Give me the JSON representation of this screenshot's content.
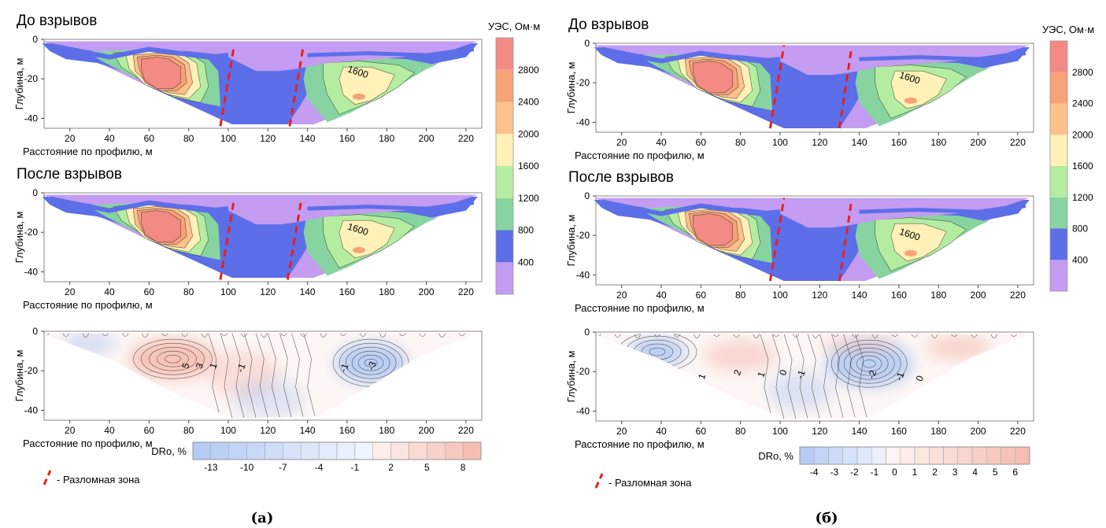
{
  "captions": [
    "(а)",
    "(б)"
  ],
  "fault_legend_label": "- Разломная зона",
  "colors": {
    "fault": "#e8201f",
    "resistivity": [
      "#c49cf2",
      "#5c6ee8",
      "#87d4a0",
      "#b5eda0",
      "#fff1b8",
      "#ffc18c",
      "#f7a277",
      "#f38a84"
    ],
    "drop_negative": "#a9c3f2",
    "drop_positive": "#f4b2a4"
  },
  "resistivity_scale": {
    "title": "УЭС, Ом·м",
    "ticks": [
      "400",
      "800",
      "1200",
      "1600",
      "2000",
      "2400",
      "2800"
    ]
  },
  "chart_data": [
    {
      "panel": "а",
      "section": "before",
      "type": "heatmap",
      "title": "До взрывов",
      "xlabel": "Расстояние по профилю, м",
      "ylabel": "Глубина, м",
      "xlim": [
        7,
        228
      ],
      "ylim": [
        -45,
        0
      ],
      "xticks": [
        "20",
        "40",
        "60",
        "80",
        "100",
        "120",
        "140",
        "160",
        "180",
        "200",
        "220"
      ],
      "yticks": [
        "0",
        "-20",
        "-40"
      ],
      "contour_labels": [
        {
          "x": 165,
          "y": -18,
          "text": "1600"
        }
      ],
      "fault_lines": [
        [
          [
            96,
            -44
          ],
          [
            103,
            -3
          ]
        ],
        [
          [
            131,
            -44
          ],
          [
            138,
            -3
          ]
        ]
      ]
    },
    {
      "panel": "а",
      "section": "after",
      "type": "heatmap",
      "title": "После взрывов",
      "xlabel": "Расстояние по профилю, м",
      "ylabel": "Глубина, м",
      "xlim": [
        7,
        228
      ],
      "ylim": [
        -45,
        0
      ],
      "xticks": [
        "20",
        "40",
        "60",
        "80",
        "100",
        "120",
        "140",
        "160",
        "180",
        "200",
        "220"
      ],
      "yticks": [
        "0",
        "-20",
        "-40"
      ],
      "contour_labels": [
        {
          "x": 165,
          "y": -20,
          "text": "1600"
        }
      ],
      "fault_lines": [
        [
          [
            96,
            -44
          ],
          [
            103,
            -3
          ]
        ],
        [
          [
            130,
            -44
          ],
          [
            137,
            -3
          ]
        ]
      ]
    },
    {
      "panel": "а",
      "section": "change",
      "type": "heatmap",
      "title": "",
      "xlabel": "Расстояние по профилю, м",
      "ylabel": "Глубина, м",
      "xlim": [
        7,
        228
      ],
      "ylim": [
        -45,
        0
      ],
      "xticks": [
        "20",
        "40",
        "60",
        "80",
        "100",
        "120",
        "140",
        "160",
        "180",
        "200",
        "220"
      ],
      "yticks": [
        "0",
        "-20",
        "-40"
      ],
      "contour_labels": [
        {
          "x": 80,
          "y": -18,
          "text": "5"
        },
        {
          "x": 87,
          "y": -18,
          "text": "3"
        },
        {
          "x": 94,
          "y": -18,
          "text": "1"
        },
        {
          "x": 108,
          "y": -19,
          "text": "-1"
        },
        {
          "x": 160,
          "y": -19,
          "text": "-1"
        },
        {
          "x": 174,
          "y": -18,
          "text": "-3"
        }
      ],
      "colorbar": {
        "title": "DRo, %",
        "ticks": [
          "-13",
          "-10",
          "-7",
          "-4",
          "-1",
          "2",
          "5",
          "8"
        ]
      }
    },
    {
      "panel": "б",
      "section": "before",
      "type": "heatmap",
      "title": "До взрывов",
      "xlabel": "Расстояние по профилю, м",
      "ylabel": "Глубина, м",
      "xlim": [
        7,
        228
      ],
      "ylim": [
        -45,
        0
      ],
      "xticks": [
        "20",
        "40",
        "60",
        "80",
        "100",
        "120",
        "140",
        "160",
        "180",
        "200",
        "220"
      ],
      "yticks": [
        "0",
        "-20",
        "-40"
      ],
      "contour_labels": [
        {
          "x": 165,
          "y": -19,
          "text": "1600"
        }
      ],
      "fault_lines": [
        [
          [
            95,
            -43
          ],
          [
            102,
            -1
          ]
        ],
        [
          [
            130,
            -43
          ],
          [
            136,
            -3
          ]
        ]
      ]
    },
    {
      "panel": "б",
      "section": "after",
      "type": "heatmap",
      "title": "После взрывов",
      "xlabel": "Расстояние по профилю, м",
      "ylabel": "Глубина, м",
      "xlim": [
        7,
        228
      ],
      "ylim": [
        -45,
        0
      ],
      "xticks": [
        "20",
        "40",
        "60",
        "80",
        "100",
        "120",
        "140",
        "160",
        "180",
        "200",
        "220"
      ],
      "yticks": [
        "0",
        "-20",
        "-40"
      ],
      "contour_labels": [
        {
          "x": 165,
          "y": -21,
          "text": "1600"
        }
      ],
      "fault_lines": [
        [
          [
            95,
            -43
          ],
          [
            102,
            -1
          ]
        ],
        [
          [
            130,
            -43
          ],
          [
            136,
            -3
          ]
        ]
      ]
    },
    {
      "panel": "б",
      "section": "change",
      "type": "heatmap",
      "title": "",
      "xlabel": "Расстояние по профилю, м",
      "ylabel": "Глубина, м",
      "xlim": [
        7,
        228
      ],
      "ylim": [
        -45,
        0
      ],
      "xticks": [
        "20",
        "40",
        "60",
        "80",
        "100",
        "120",
        "140",
        "160",
        "180",
        "200",
        "220"
      ],
      "yticks": [
        "0",
        "-20",
        "-40"
      ],
      "contour_labels": [
        {
          "x": 62,
          "y": -23,
          "text": "1"
        },
        {
          "x": 80,
          "y": -21,
          "text": "2"
        },
        {
          "x": 92,
          "y": -22,
          "text": "1"
        },
        {
          "x": 103,
          "y": -21,
          "text": "0"
        },
        {
          "x": 112,
          "y": -22,
          "text": "-1"
        },
        {
          "x": 148,
          "y": -22,
          "text": "-2"
        },
        {
          "x": 162,
          "y": -23,
          "text": "-1"
        },
        {
          "x": 172,
          "y": -24,
          "text": "0"
        }
      ],
      "colorbar": {
        "title": "DRo, %",
        "ticks": [
          "-4",
          "-3",
          "-2",
          "-1",
          "0",
          "1",
          "2",
          "3",
          "4",
          "5",
          "6"
        ]
      }
    }
  ]
}
